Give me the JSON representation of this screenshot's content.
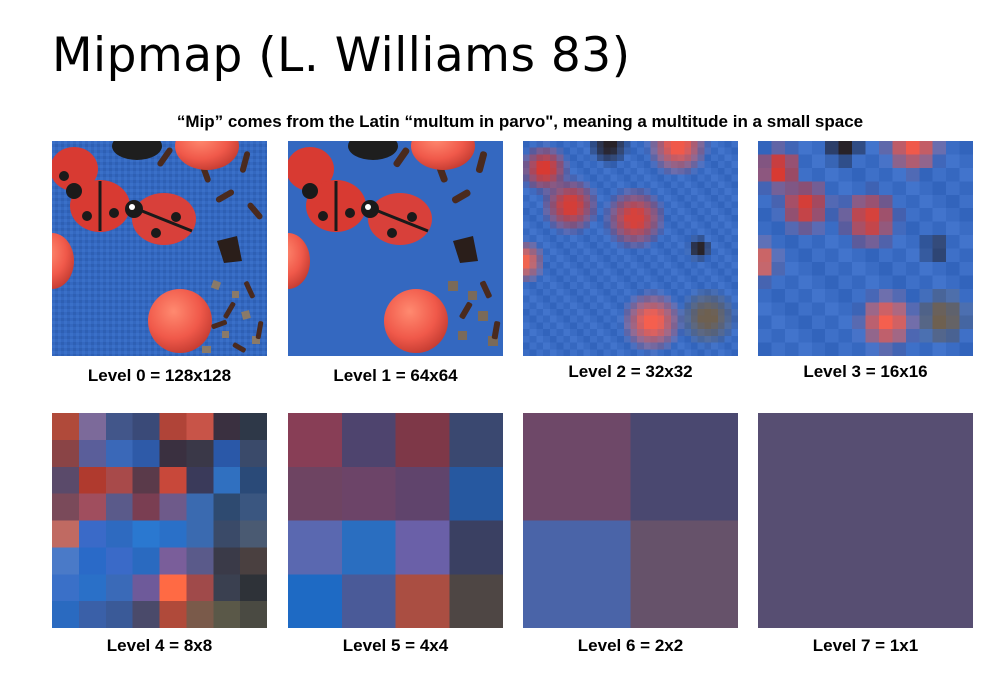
{
  "slide": {
    "title": "Mipmap (L. Williams 83)",
    "subtitle": "“Mip” comes from the Latin “multum in parvo\", meaning a multitude in a small space"
  },
  "levels": [
    {
      "label": "Level 0 = 128x128"
    },
    {
      "label": "Level 1 = 64x64"
    },
    {
      "label": "Level 2 = 32x32"
    },
    {
      "label": "Level 3 = 16x16"
    },
    {
      "label": "Level 4 = 8x8"
    },
    {
      "label": "Level 5 = 4x4"
    },
    {
      "label": "Level 6 = 2x2"
    },
    {
      "label": "Level 7 = 1x1"
    }
  ],
  "colors": {
    "table_blue": "#3a6bc0",
    "ladybug_red": "#e6483e",
    "candy_red": "#f0594a",
    "average": "#574e72"
  },
  "level_images": {
    "level4_grid_8x8": [
      [
        "#b04a3a",
        "#7c6a9a",
        "#42568a",
        "#3a4a78",
        "#b04438",
        "#c85448",
        "#3a3040",
        "#2e3848"
      ],
      [
        "#8a4446",
        "#5a5e9a",
        "#3a68b8",
        "#2e5aa8",
        "#3a3040",
        "#3a3848",
        "#2a58a8",
        "#3a4a6a"
      ],
      [
        "#5a4a6a",
        "#b03a2e",
        "#a84a4a",
        "#5a3a4a",
        "#c8483a",
        "#3a3a5a",
        "#3070c0",
        "#2a4a78"
      ],
      [
        "#7a4a5a",
        "#a04e5e",
        "#5a5a8a",
        "#7a3e52",
        "#6e5a8a",
        "#3a6ab0",
        "#2e4a70",
        "#3a5680"
      ],
      [
        "#c06a62",
        "#3a6ac8",
        "#2e6ac0",
        "#2a78d0",
        "#2a70c8",
        "#3a6ab0",
        "#3a4a68",
        "#4a5a72"
      ],
      [
        "#4a7ac8",
        "#2a6ac8",
        "#3a6ac8",
        "#2a6ac0",
        "#7a5e9a",
        "#5a5a8a",
        "#3a3a48",
        "#4a4040"
      ],
      [
        "#3a70c8",
        "#2a70c8",
        "#3a6ab8",
        "#6e5a9a",
        "#ff6a44",
        "#a04a4a",
        "#3a4050",
        "#2e3238"
      ],
      [
        "#2a6ac0",
        "#3a60a8",
        "#3a5a98",
        "#4a4a6a",
        "#b04a3a",
        "#7a5a4a",
        "#5a5848",
        "#4a4a42"
      ]
    ],
    "level5_grid_4x4": [
      [
        "#883e56",
        "#4e446e",
        "#7e3848",
        "#3a4870"
      ],
      [
        "#6e4462",
        "#6c4468",
        "#60446c",
        "#2658a0"
      ],
      [
        "#5a68b0",
        "#2a6ec0",
        "#6a60a8",
        "#3a4062"
      ],
      [
        "#1e6ac4",
        "#4a5a98",
        "#aa4e42",
        "#4e4644"
      ]
    ],
    "level6_grid_2x2": [
      [
        "#6e4868",
        "#4a4870"
      ],
      [
        "#4a64a8",
        "#66526a"
      ]
    ],
    "level7_grid_1x1": [
      [
        "#574e72"
      ]
    ]
  }
}
